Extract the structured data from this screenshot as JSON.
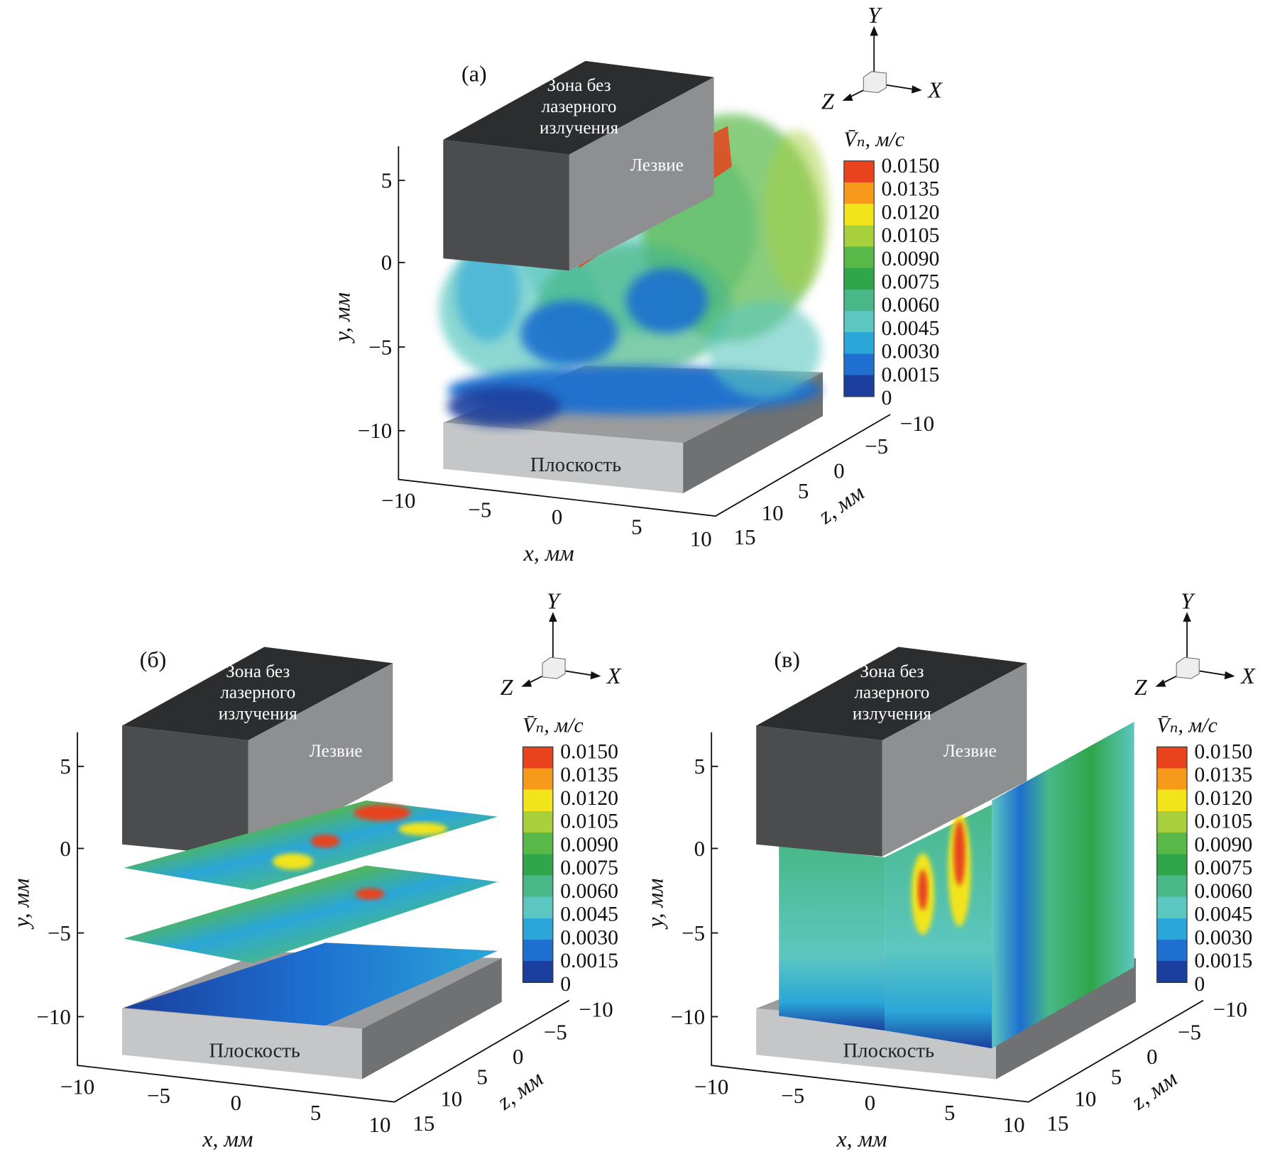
{
  "colors": {
    "colormap": [
      "#1a3f9e",
      "#1e6fd0",
      "#2aa6d8",
      "#5cc7c0",
      "#48b888",
      "#2fa64a",
      "#58b848",
      "#a8cf3c",
      "#f2e41a",
      "#f79a1c",
      "#e8431c"
    ],
    "blade_front": "#4a4c4e",
    "blade_top": "#2c2d2e",
    "blade_side": "#8d8f91",
    "plane_front": "#c4c6c8",
    "plane_side": "#6f7173",
    "plane_top": "#9a9c9e"
  },
  "axes": {
    "y_label": "y, мм",
    "x_label": "x, мм",
    "z_label": "z, мм",
    "y_ticks": [
      "5",
      "0",
      "−5",
      "−10"
    ],
    "x_ticks": [
      "−10",
      "−5",
      "0",
      "5",
      "10"
    ],
    "z_ticks": [
      "15",
      "10",
      "5",
      "0",
      "−5",
      "−10"
    ]
  },
  "triad": {
    "x": "X",
    "y": "Y",
    "z": "Z",
    "icon": "orientation-cube-icon"
  },
  "colorbar": {
    "title": "V̄ₙ, м/с",
    "ticks": [
      "0.0150",
      "0.0135",
      "0.0120",
      "0.0105",
      "0.0090",
      "0.0075",
      "0.0060",
      "0.0045",
      "0.0030",
      "0.0015",
      "0"
    ]
  },
  "annotations": {
    "zone": [
      "Зона без",
      "лазерного",
      "излучения"
    ],
    "blade": "Лезвие",
    "plane": "Плоскость"
  },
  "panels": [
    {
      "label": "(а)",
      "view": "isosurfaces"
    },
    {
      "label": "(б)",
      "view": "horizontal-slices"
    },
    {
      "label": "(в)",
      "view": "vertical-slices"
    }
  ]
}
